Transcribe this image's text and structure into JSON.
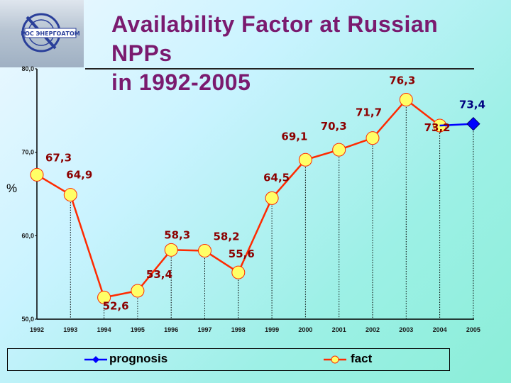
{
  "title_line1": "Availability Factor at Russian NPPs",
  "title_line2": "in 1992-2005",
  "logo_text": "РОС ЭНЕРГОАТОМ",
  "unit_label": "%",
  "chart_data": {
    "type": "line",
    "title": "Availability Factor at Russian NPPs in 1992-2005",
    "xlabel": "",
    "ylabel": "%",
    "ylim": [
      50,
      80
    ],
    "yticks": [
      "50,0",
      "60,0",
      "70,0",
      "80,0"
    ],
    "categories": [
      "1992",
      "1993",
      "1994",
      "1995",
      "1996",
      "1997",
      "1998",
      "1999",
      "2000",
      "2001",
      "2002",
      "2003",
      "2004",
      "2005"
    ],
    "series": [
      {
        "name": "fact",
        "color": "#ff2a00",
        "values": [
          67.3,
          64.9,
          52.6,
          53.4,
          58.3,
          58.2,
          55.6,
          64.5,
          69.1,
          70.3,
          71.7,
          76.3,
          73.2,
          null
        ],
        "labels": [
          "67,3",
          "64,9",
          "52,6",
          "53,4",
          "58,3",
          "58,2",
          "55,6",
          "64,5",
          "69,1",
          "70,3",
          "71,7",
          "76,3",
          "73,2",
          ""
        ]
      },
      {
        "name": "prognosis",
        "color": "#0000ff",
        "values": [
          null,
          null,
          null,
          null,
          null,
          null,
          null,
          null,
          null,
          null,
          null,
          null,
          73.2,
          73.4
        ],
        "labels": [
          "",
          "",
          "",
          "",
          "",
          "",
          "",
          "",
          "",
          "",
          "",
          "",
          "",
          "73,4"
        ]
      }
    ],
    "legend": {
      "placement": "bottom",
      "entries": [
        "prognosis",
        "fact"
      ]
    }
  }
}
